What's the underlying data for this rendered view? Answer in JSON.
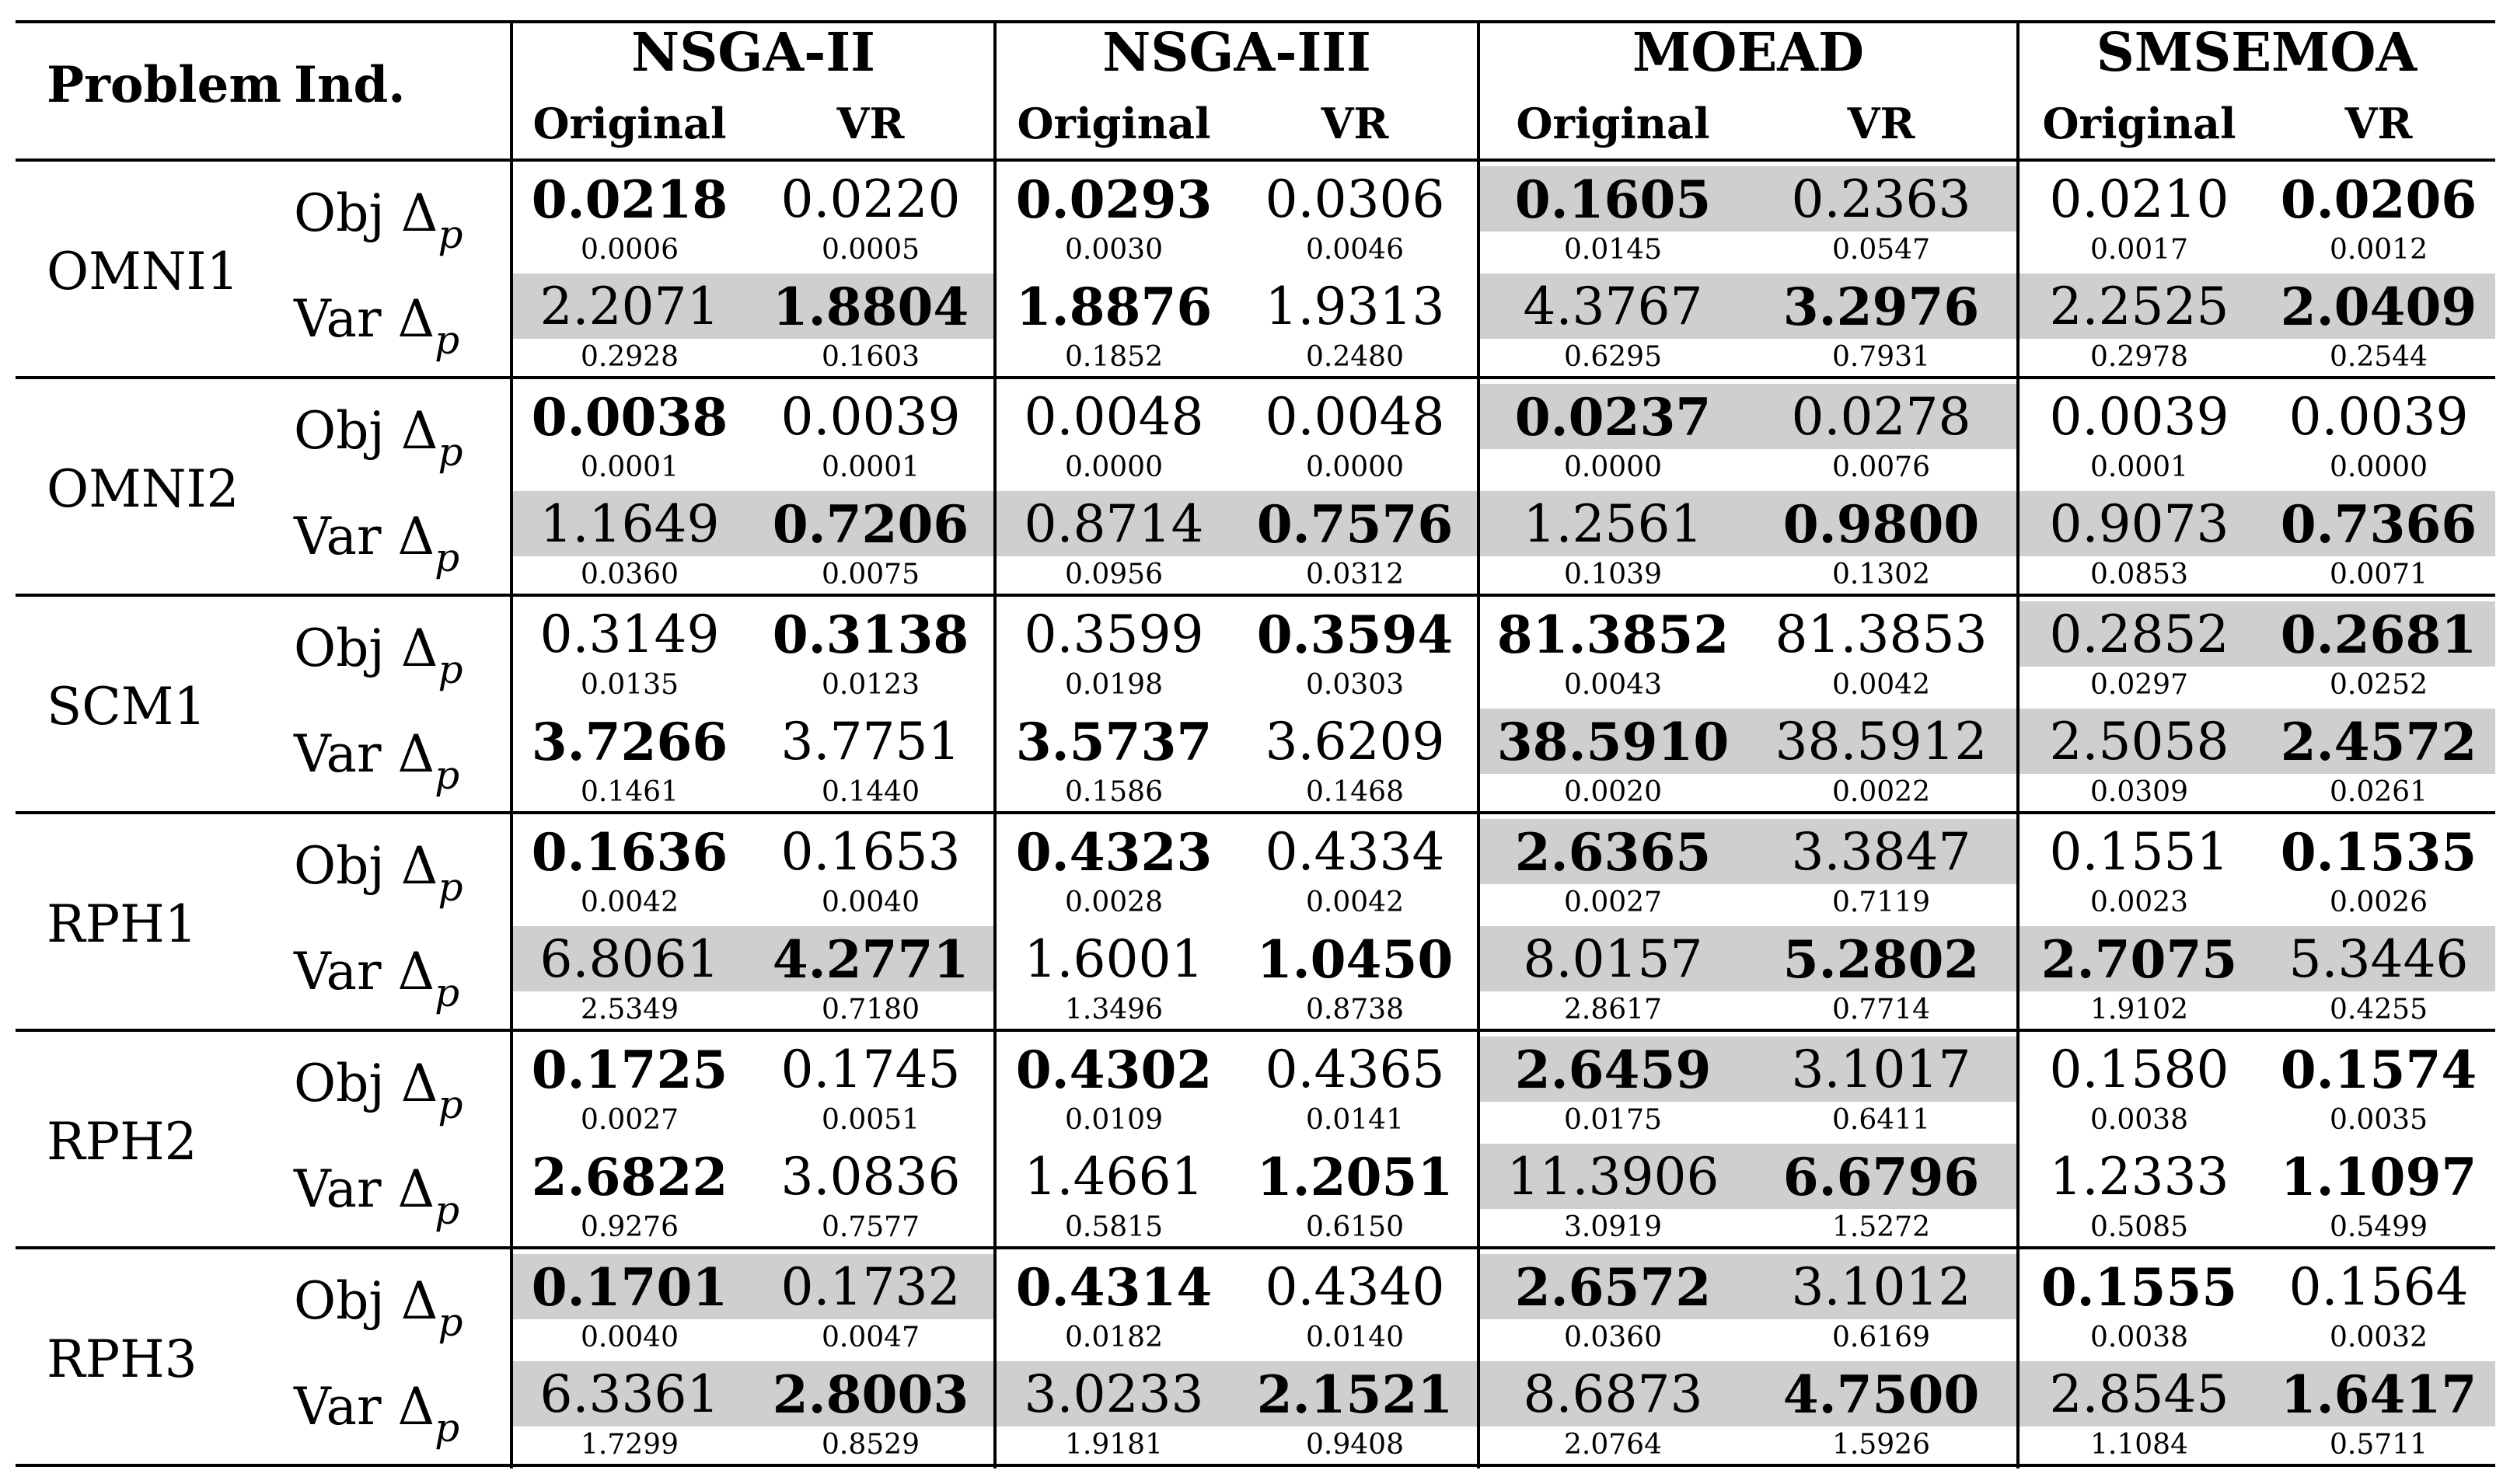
{
  "header": {
    "problem": "Problem",
    "ind": "Ind.",
    "algorithms": [
      "NSGA-II",
      "NSGA-III",
      "MOEAD",
      "SMSEMOA"
    ],
    "subcols": [
      "Original",
      "VR"
    ]
  },
  "indicators": {
    "obj": "Obj Δ",
    "var": "Var Δ",
    "subscript": "p"
  },
  "rows": [
    {
      "problem": "OMNI1",
      "obj": {
        "cells": [
          {
            "mean": "0.0218",
            "sd": "0.0006",
            "bold": true
          },
          {
            "mean": "0.0220",
            "sd": "0.0005",
            "bold": false
          },
          {
            "mean": "0.0293",
            "sd": "0.0030",
            "bold": true
          },
          {
            "mean": "0.0306",
            "sd": "0.0046",
            "bold": false
          },
          {
            "mean": "0.1605",
            "sd": "0.0145",
            "bold": true
          },
          {
            "mean": "0.2363",
            "sd": "0.0547",
            "bold": false
          },
          {
            "mean": "0.0210",
            "sd": "0.0017",
            "bold": false
          },
          {
            "mean": "0.0206",
            "sd": "0.0012",
            "bold": true
          }
        ],
        "shaded": [
          false,
          false,
          true,
          false
        ]
      },
      "var": {
        "cells": [
          {
            "mean": "2.2071",
            "sd": "0.2928",
            "bold": false
          },
          {
            "mean": "1.8804",
            "sd": "0.1603",
            "bold": true
          },
          {
            "mean": "1.8876",
            "sd": "0.1852",
            "bold": true
          },
          {
            "mean": "1.9313",
            "sd": "0.2480",
            "bold": false
          },
          {
            "mean": "4.3767",
            "sd": "0.6295",
            "bold": false
          },
          {
            "mean": "3.2976",
            "sd": "0.7931",
            "bold": true
          },
          {
            "mean": "2.2525",
            "sd": "0.2978",
            "bold": false
          },
          {
            "mean": "2.0409",
            "sd": "0.2544",
            "bold": true
          }
        ],
        "shaded": [
          true,
          false,
          true,
          true
        ]
      }
    },
    {
      "problem": "OMNI2",
      "obj": {
        "cells": [
          {
            "mean": "0.0038",
            "sd": "0.0001",
            "bold": true
          },
          {
            "mean": "0.0039",
            "sd": "0.0001",
            "bold": false
          },
          {
            "mean": "0.0048",
            "sd": "0.0000",
            "bold": false
          },
          {
            "mean": "0.0048",
            "sd": "0.0000",
            "bold": false
          },
          {
            "mean": "0.0237",
            "sd": "0.0000",
            "bold": true
          },
          {
            "mean": "0.0278",
            "sd": "0.0076",
            "bold": false
          },
          {
            "mean": "0.0039",
            "sd": "0.0001",
            "bold": false
          },
          {
            "mean": "0.0039",
            "sd": "0.0000",
            "bold": false
          }
        ],
        "shaded": [
          false,
          false,
          true,
          false
        ]
      },
      "var": {
        "cells": [
          {
            "mean": "1.1649",
            "sd": "0.0360",
            "bold": false
          },
          {
            "mean": "0.7206",
            "sd": "0.0075",
            "bold": true
          },
          {
            "mean": "0.8714",
            "sd": "0.0956",
            "bold": false
          },
          {
            "mean": "0.7576",
            "sd": "0.0312",
            "bold": true
          },
          {
            "mean": "1.2561",
            "sd": "0.1039",
            "bold": false
          },
          {
            "mean": "0.9800",
            "sd": "0.1302",
            "bold": true
          },
          {
            "mean": "0.9073",
            "sd": "0.0853",
            "bold": false
          },
          {
            "mean": "0.7366",
            "sd": "0.0071",
            "bold": true
          }
        ],
        "shaded": [
          true,
          true,
          true,
          true
        ]
      }
    },
    {
      "problem": "SCM1",
      "obj": {
        "cells": [
          {
            "mean": "0.3149",
            "sd": "0.0135",
            "bold": false
          },
          {
            "mean": "0.3138",
            "sd": "0.0123",
            "bold": true
          },
          {
            "mean": "0.3599",
            "sd": "0.0198",
            "bold": false
          },
          {
            "mean": "0.3594",
            "sd": "0.0303",
            "bold": true
          },
          {
            "mean": "81.3852",
            "sd": "0.0043",
            "bold": true
          },
          {
            "mean": "81.3853",
            "sd": "0.0042",
            "bold": false
          },
          {
            "mean": "0.2852",
            "sd": "0.0297",
            "bold": false
          },
          {
            "mean": "0.2681",
            "sd": "0.0252",
            "bold": true
          }
        ],
        "shaded": [
          false,
          false,
          false,
          true
        ]
      },
      "var": {
        "cells": [
          {
            "mean": "3.7266",
            "sd": "0.1461",
            "bold": true
          },
          {
            "mean": "3.7751",
            "sd": "0.1440",
            "bold": false
          },
          {
            "mean": "3.5737",
            "sd": "0.1586",
            "bold": true
          },
          {
            "mean": "3.6209",
            "sd": "0.1468",
            "bold": false
          },
          {
            "mean": "38.5910",
            "sd": "0.0020",
            "bold": true
          },
          {
            "mean": "38.5912",
            "sd": "0.0022",
            "bold": false
          },
          {
            "mean": "2.5058",
            "sd": "0.0309",
            "bold": false
          },
          {
            "mean": "2.4572",
            "sd": "0.0261",
            "bold": true
          }
        ],
        "shaded": [
          false,
          false,
          true,
          true
        ]
      }
    },
    {
      "problem": "RPH1",
      "obj": {
        "cells": [
          {
            "mean": "0.1636",
            "sd": "0.0042",
            "bold": true
          },
          {
            "mean": "0.1653",
            "sd": "0.0040",
            "bold": false
          },
          {
            "mean": "0.4323",
            "sd": "0.0028",
            "bold": true
          },
          {
            "mean": "0.4334",
            "sd": "0.0042",
            "bold": false
          },
          {
            "mean": "2.6365",
            "sd": "0.0027",
            "bold": true
          },
          {
            "mean": "3.3847",
            "sd": "0.7119",
            "bold": false
          },
          {
            "mean": "0.1551",
            "sd": "0.0023",
            "bold": false
          },
          {
            "mean": "0.1535",
            "sd": "0.0026",
            "bold": true
          }
        ],
        "shaded": [
          false,
          false,
          true,
          false
        ]
      },
      "var": {
        "cells": [
          {
            "mean": "6.8061",
            "sd": "2.5349",
            "bold": false
          },
          {
            "mean": "4.2771",
            "sd": "0.7180",
            "bold": true
          },
          {
            "mean": "1.6001",
            "sd": "1.3496",
            "bold": false
          },
          {
            "mean": "1.0450",
            "sd": "0.8738",
            "bold": true
          },
          {
            "mean": "8.0157",
            "sd": "2.8617",
            "bold": false
          },
          {
            "mean": "5.2802",
            "sd": "0.7714",
            "bold": true
          },
          {
            "mean": "2.7075",
            "sd": "1.9102",
            "bold": true
          },
          {
            "mean": "5.3446",
            "sd": "0.4255",
            "bold": false
          }
        ],
        "shaded": [
          true,
          false,
          true,
          true
        ]
      }
    },
    {
      "problem": "RPH2",
      "obj": {
        "cells": [
          {
            "mean": "0.1725",
            "sd": "0.0027",
            "bold": true
          },
          {
            "mean": "0.1745",
            "sd": "0.0051",
            "bold": false
          },
          {
            "mean": "0.4302",
            "sd": "0.0109",
            "bold": true
          },
          {
            "mean": "0.4365",
            "sd": "0.0141",
            "bold": false
          },
          {
            "mean": "2.6459",
            "sd": "0.0175",
            "bold": true
          },
          {
            "mean": "3.1017",
            "sd": "0.6411",
            "bold": false
          },
          {
            "mean": "0.1580",
            "sd": "0.0038",
            "bold": false
          },
          {
            "mean": "0.1574",
            "sd": "0.0035",
            "bold": true
          }
        ],
        "shaded": [
          false,
          false,
          true,
          false
        ]
      },
      "var": {
        "cells": [
          {
            "mean": "2.6822",
            "sd": "0.9276",
            "bold": true
          },
          {
            "mean": "3.0836",
            "sd": "0.7577",
            "bold": false
          },
          {
            "mean": "1.4661",
            "sd": "0.5815",
            "bold": false
          },
          {
            "mean": "1.2051",
            "sd": "0.6150",
            "bold": true
          },
          {
            "mean": "11.3906",
            "sd": "3.0919",
            "bold": false
          },
          {
            "mean": "6.6796",
            "sd": "1.5272",
            "bold": true
          },
          {
            "mean": "1.2333",
            "sd": "0.5085",
            "bold": false
          },
          {
            "mean": "1.1097",
            "sd": "0.5499",
            "bold": true
          }
        ],
        "shaded": [
          false,
          false,
          true,
          false
        ]
      }
    },
    {
      "problem": "RPH3",
      "obj": {
        "cells": [
          {
            "mean": "0.1701",
            "sd": "0.0040",
            "bold": true
          },
          {
            "mean": "0.1732",
            "sd": "0.0047",
            "bold": false
          },
          {
            "mean": "0.4314",
            "sd": "0.0182",
            "bold": true
          },
          {
            "mean": "0.4340",
            "sd": "0.0140",
            "bold": false
          },
          {
            "mean": "2.6572",
            "sd": "0.0360",
            "bold": true
          },
          {
            "mean": "3.1012",
            "sd": "0.6169",
            "bold": false
          },
          {
            "mean": "0.1555",
            "sd": "0.0038",
            "bold": true
          },
          {
            "mean": "0.1564",
            "sd": "0.0032",
            "bold": false
          }
        ],
        "shaded": [
          true,
          false,
          true,
          false
        ]
      },
      "var": {
        "cells": [
          {
            "mean": "6.3361",
            "sd": "1.7299",
            "bold": false
          },
          {
            "mean": "2.8003",
            "sd": "0.8529",
            "bold": true
          },
          {
            "mean": "3.0233",
            "sd": "1.9181",
            "bold": false
          },
          {
            "mean": "2.1521",
            "sd": "0.9408",
            "bold": true
          },
          {
            "mean": "8.6873",
            "sd": "2.0764",
            "bold": false
          },
          {
            "mean": "4.7500",
            "sd": "1.5926",
            "bold": true
          },
          {
            "mean": "2.8545",
            "sd": "1.1084",
            "bold": false
          },
          {
            "mean": "1.6417",
            "sd": "0.5711",
            "bold": true
          }
        ],
        "shaded": [
          true,
          true,
          true,
          true
        ]
      }
    }
  ]
}
